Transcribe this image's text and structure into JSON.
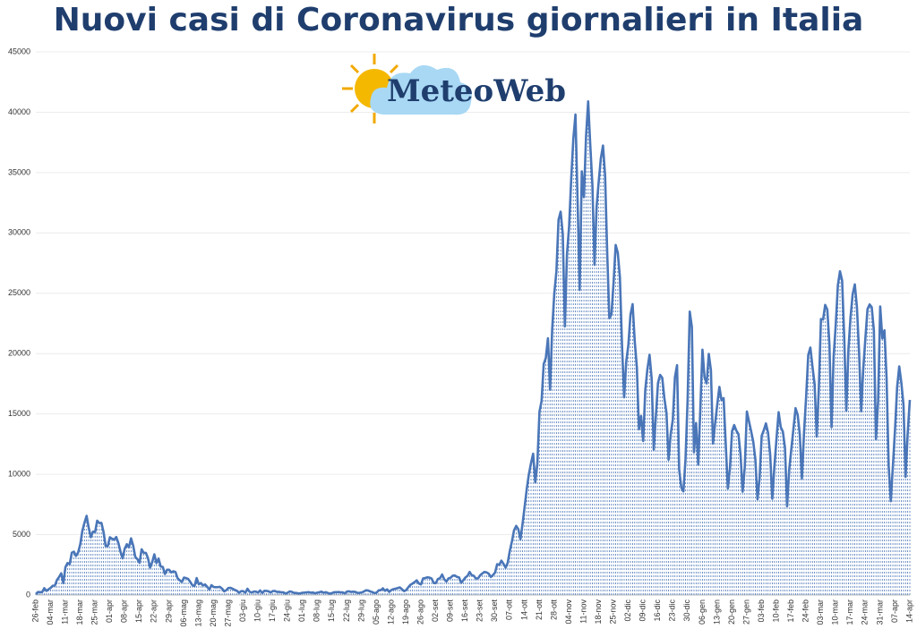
{
  "chart_data": {
    "type": "line",
    "title": "Nuovi casi di Coronavirus giornalieri in Italia",
    "logo": "MeteoWeb",
    "color": "#4a76b8",
    "drop_lines": true,
    "ylim": [
      0,
      45000
    ],
    "yticks": [
      0,
      5000,
      10000,
      15000,
      20000,
      25000,
      30000,
      35000,
      40000,
      45000
    ],
    "categories": [
      "26-feb",
      null,
      null,
      null,
      null,
      null,
      null,
      "04-mar",
      null,
      null,
      null,
      null,
      null,
      null,
      "11-mar",
      null,
      null,
      null,
      null,
      null,
      null,
      "18-mar",
      null,
      null,
      null,
      null,
      null,
      null,
      "25-mar",
      null,
      null,
      null,
      null,
      null,
      null,
      "01-apr",
      null,
      null,
      null,
      null,
      null,
      null,
      "08-apr",
      null,
      null,
      null,
      null,
      null,
      null,
      "15-apr",
      null,
      null,
      null,
      null,
      null,
      null,
      "22-apr",
      null,
      null,
      null,
      null,
      null,
      null,
      "29-apr",
      null,
      null,
      null,
      null,
      null,
      null,
      "06-mag",
      null,
      null,
      null,
      null,
      null,
      null,
      "13-mag",
      null,
      null,
      null,
      null,
      null,
      null,
      "20-mag",
      null,
      null,
      null,
      null,
      null,
      null,
      "27-mag",
      null,
      null,
      null,
      null,
      null,
      null,
      "03-giu",
      null,
      null,
      null,
      null,
      null,
      null,
      "10-giu",
      null,
      null,
      null,
      null,
      null,
      null,
      "17-giu",
      null,
      null,
      null,
      null,
      null,
      null,
      "24-giu",
      null,
      null,
      null,
      null,
      null,
      null,
      "01-lug",
      null,
      null,
      null,
      null,
      null,
      null,
      "08-lug",
      null,
      null,
      null,
      null,
      null,
      null,
      "15-lug",
      null,
      null,
      null,
      null,
      null,
      null,
      "22-lug",
      null,
      null,
      null,
      null,
      null,
      null,
      "29-lug",
      null,
      null,
      null,
      null,
      null,
      null,
      "05-ago",
      null,
      null,
      null,
      null,
      null,
      null,
      "12-ago",
      null,
      null,
      null,
      null,
      null,
      null,
      "19-ago",
      null,
      null,
      null,
      null,
      null,
      null,
      "26-ago",
      null,
      null,
      null,
      null,
      null,
      null,
      "02-set",
      null,
      null,
      null,
      null,
      null,
      null,
      "09-set",
      null,
      null,
      null,
      null,
      null,
      null,
      "16-set",
      null,
      null,
      null,
      null,
      null,
      null,
      "23-set",
      null,
      null,
      null,
      null,
      null,
      null,
      "30-set",
      null,
      null,
      null,
      null,
      null,
      null,
      "07-ott",
      null,
      null,
      null,
      null,
      null,
      null,
      "14-ott",
      null,
      null,
      null,
      null,
      null,
      null,
      "21-ott",
      null,
      null,
      null,
      null,
      null,
      null,
      "28-ott",
      null,
      null,
      null,
      null,
      null,
      null,
      "04-nov",
      null,
      null,
      null,
      null,
      null,
      null,
      "11-nov",
      null,
      null,
      null,
      null,
      null,
      null,
      "18-nov",
      null,
      null,
      null,
      null,
      null,
      null,
      "25-nov",
      null,
      null,
      null,
      null,
      null,
      null,
      "02-dic",
      null,
      null,
      null,
      null,
      null,
      null,
      "09-dic",
      null,
      null,
      null,
      null,
      null,
      null,
      "16-dic",
      null,
      null,
      null,
      null,
      null,
      null,
      "23-dic",
      null,
      null,
      null,
      null,
      null,
      null,
      "30-dic",
      null,
      null,
      null,
      null,
      null,
      null,
      "06-gen",
      null,
      null,
      null,
      null,
      null,
      null,
      "13-gen",
      null,
      null,
      null,
      null,
      null,
      null,
      "20-gen",
      null,
      null,
      null,
      null,
      null,
      null,
      "27-gen",
      null,
      null,
      null,
      null,
      null,
      null,
      "03-feb",
      null,
      null,
      null,
      null,
      null,
      null,
      "10-feb",
      null,
      null,
      null,
      null,
      null,
      null,
      "17-feb",
      null,
      null,
      null,
      null,
      null,
      null,
      "24-feb",
      null,
      null,
      null,
      null,
      null,
      null,
      "03-mar",
      null,
      null,
      null,
      null,
      null,
      null,
      "10-mar",
      null,
      null,
      null,
      null,
      null,
      null,
      "17-mar",
      null,
      null,
      null,
      null,
      null,
      null,
      "24-mar",
      null,
      null,
      null,
      null,
      null,
      null,
      "31-mar",
      null,
      null,
      null,
      null,
      null,
      null,
      "07-apr",
      null,
      null,
      null,
      null,
      null,
      null,
      "14-apr"
    ],
    "values": [
      78,
      250,
      238,
      240,
      566,
      342,
      466,
      587,
      769,
      778,
      1247,
      1492,
      1797,
      977,
      2313,
      2651,
      2547,
      3497,
      3590,
      3233,
      3526,
      4207,
      5322,
      5986,
      6557,
      5560,
      4789,
      5249,
      5210,
      6153,
      5959,
      5974,
      5217,
      4050,
      4053,
      4782,
      4668,
      4585,
      4805,
      4316,
      3599,
      3039,
      3836,
      4204,
      3951,
      4694,
      4092,
      3153,
      2972,
      2667,
      3786,
      3493,
      3491,
      3047,
      2256,
      2729,
      3370,
      2646,
      3021,
      2357,
      2324,
      1739,
      2091,
      2086,
      1872,
      1965,
      1900,
      1389,
      1221,
      1075,
      1444,
      1401,
      1327,
      1083,
      802,
      744,
      1402,
      888,
      992,
      789,
      875,
      675,
      451,
      813,
      665,
      642,
      652,
      669,
      531,
      300,
      397,
      584,
      593,
      516,
      416,
      355,
      178,
      318,
      321,
      177,
      518,
      270,
      197,
      280,
      283,
      202,
      379,
      163,
      346,
      338,
      301,
      210,
      328,
      331,
      251,
      262,
      224,
      218,
      122,
      190,
      296,
      259,
      175,
      174,
      126,
      142,
      187,
      201,
      223,
      235,
      192,
      208,
      138,
      193,
      229,
      276,
      188,
      234,
      169,
      114,
      162,
      230,
      233,
      249,
      219,
      218,
      129,
      280,
      306,
      252,
      275,
      255,
      170,
      181,
      212,
      289,
      386,
      379,
      295,
      239,
      159,
      190,
      384,
      402,
      552,
      347,
      463,
      259,
      412,
      481,
      523,
      574,
      629,
      479,
      320,
      403,
      642,
      845,
      947,
      1071,
      1210,
      953,
      878,
      1367,
      1411,
      1460,
      1444,
      1365,
      996,
      978,
      1326,
      1397,
      1695,
      1297,
      1108,
      1370,
      1434,
      1597,
      1616,
      1501,
      1458,
      1008,
      1229,
      1452,
      1585,
      1907,
      1638,
      1587,
      1350,
      1392,
      1640,
      1786,
      1912,
      1869,
      1766,
      1494,
      1648,
      1851,
      2548,
      2499,
      2844,
      2578,
      2257,
      2677,
      3678,
      4458,
      5372,
      5724,
      5456,
      4619,
      5901,
      7332,
      8804,
      10010,
      10925,
      11705,
      9338,
      10874,
      15199,
      16079,
      19143,
      19644,
      21273,
      17012,
      21994,
      24991,
      26831,
      31084,
      31758,
      29907,
      22253,
      28244,
      30550,
      34505,
      37809,
      39811,
      32616,
      25271,
      35098,
      32961,
      37978,
      40902,
      37255,
      33979,
      27354,
      32191,
      34283,
      36176,
      37242,
      34767,
      28337,
      22930,
      23232,
      25853,
      29003,
      28352,
      26323,
      20648,
      16377,
      19350,
      20709,
      23225,
      24099,
      21052,
      18887,
      13720,
      14842,
      12756,
      16999,
      18727,
      19903,
      17938,
      12030,
      14844,
      17572,
      18236,
      17992,
      16308,
      15104,
      11212,
      13318,
      14522,
      18040,
      19037,
      10407,
      8913,
      8585,
      11224,
      16202,
      23477,
      22211,
      11831,
      14245,
      10800,
      15378,
      20331,
      18020,
      17533,
      19978,
      18627,
      12545,
      14242,
      15774,
      17246,
      16146,
      16310,
      12545,
      8825,
      10497,
      13571,
      14078,
      13633,
      13331,
      11629,
      8561,
      10593,
      15204,
      14372,
      13574,
      12715,
      11252,
      7925,
      9660,
      13189,
      13659,
      14218,
      13442,
      11641,
      7970,
      10630,
      12956,
      15146,
      13908,
      13532,
      12196,
      7351,
      10386,
      12074,
      13762,
      15479,
      14931,
      13314,
      9630,
      13452,
      16424,
      19886,
      20499,
      18916,
      17455,
      13114,
      17083,
      22865,
      22823,
      24036,
      23641,
      20765,
      13902,
      19749,
      22409,
      25673,
      26824,
      26062,
      21315,
      15267,
      20396,
      23059,
      24935,
      25735,
      23832,
      20159,
      15215,
      18765,
      21267,
      23696,
      24076,
      23839,
      21932,
      12916,
      16017,
      23904,
      21261,
      21932,
      18020,
      10680,
      7767,
      10680,
      13708,
      17221,
      18938,
      17567,
      15746,
      9789,
      13447,
      16168
    ]
  }
}
